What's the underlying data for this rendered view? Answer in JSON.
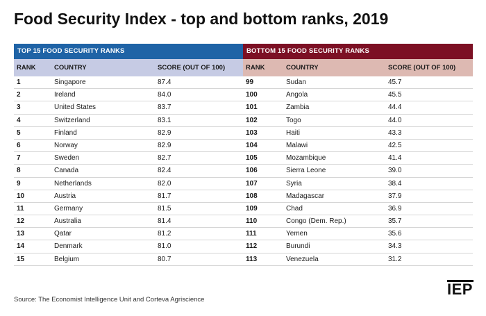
{
  "title": "Food Security Index - top and bottom ranks, 2019",
  "source": "Source: The Economist Intelligence Unit and Corteva Agriscience",
  "logo_text": "IEP",
  "colors": {
    "top_band": "#1f63a6",
    "top_header": "#c6cbe4",
    "bottom_band": "#7c1024",
    "bottom_header": "#ddb9b2"
  },
  "chart_data": {
    "type": "table",
    "title": "Food Security Index - top and bottom ranks, 2019",
    "tables": [
      {
        "heading": "TOP 15 FOOD SECURITY RANKS",
        "columns": [
          "RANK",
          "COUNTRY",
          "SCORE (OUT OF 100)"
        ],
        "rows": [
          [
            "1",
            "Singapore",
            "87.4"
          ],
          [
            "2",
            "Ireland",
            "84.0"
          ],
          [
            "3",
            "United States",
            "83.7"
          ],
          [
            "4",
            "Switzerland",
            "83.1"
          ],
          [
            "5",
            "Finland",
            "82.9"
          ],
          [
            "6",
            "Norway",
            "82.9"
          ],
          [
            "7",
            "Sweden",
            "82.7"
          ],
          [
            "8",
            "Canada",
            "82.4"
          ],
          [
            "9",
            "Netherlands",
            "82.0"
          ],
          [
            "10",
            "Austria",
            "81.7"
          ],
          [
            "11",
            "Germany",
            "81.5"
          ],
          [
            "12",
            "Australia",
            "81.4"
          ],
          [
            "13",
            "Qatar",
            "81.2"
          ],
          [
            "14",
            "Denmark",
            "81.0"
          ],
          [
            "15",
            "Belgium",
            "80.7"
          ]
        ]
      },
      {
        "heading": "BOTTOM 15 FOOD SECURITY RANKS",
        "columns": [
          "RANK",
          "COUNTRY",
          "SCORE (OUT OF 100)"
        ],
        "rows": [
          [
            "99",
            "Sudan",
            "45.7"
          ],
          [
            "100",
            "Angola",
            "45.5"
          ],
          [
            "101",
            "Zambia",
            "44.4"
          ],
          [
            "102",
            "Togo",
            "44.0"
          ],
          [
            "103",
            "Haiti",
            "43.3"
          ],
          [
            "104",
            "Malawi",
            "42.5"
          ],
          [
            "105",
            "Mozambique",
            "41.4"
          ],
          [
            "106",
            "Sierra Leone",
            "39.0"
          ],
          [
            "107",
            "Syria",
            "38.4"
          ],
          [
            "108",
            "Madagascar",
            "37.9"
          ],
          [
            "109",
            "Chad",
            "36.9"
          ],
          [
            "110",
            "Congo (Dem. Rep.)",
            "35.7"
          ],
          [
            "111",
            "Yemen",
            "35.6"
          ],
          [
            "112",
            "Burundi",
            "34.3"
          ],
          [
            "113",
            "Venezuela",
            "31.2"
          ]
        ]
      }
    ]
  }
}
